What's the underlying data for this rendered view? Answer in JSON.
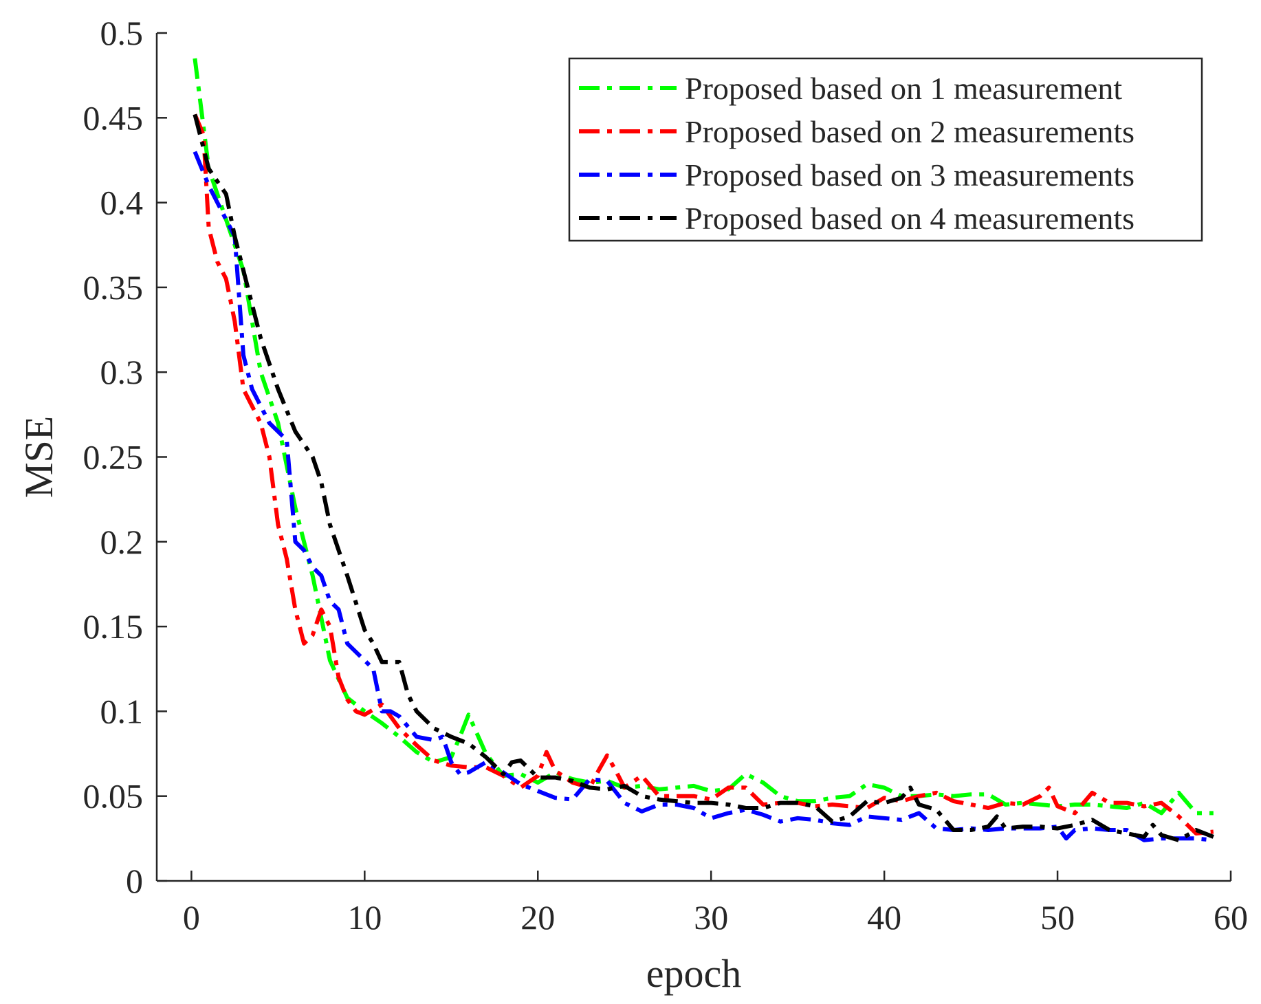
{
  "chart_data": {
    "type": "line",
    "title": "",
    "xlabel": "epoch",
    "ylabel": "MSE",
    "xlim": [
      -2,
      60
    ],
    "ylim": [
      0,
      0.5
    ],
    "xticks": [
      0,
      10,
      20,
      30,
      40,
      50,
      60
    ],
    "yticks": [
      0,
      0.05,
      0.1,
      0.15,
      0.2,
      0.25,
      0.3,
      0.35,
      0.4,
      0.45,
      0.5
    ],
    "xtick_labels": [
      "0",
      "10",
      "20",
      "30",
      "40",
      "50",
      "60"
    ],
    "ytick_labels": [
      "0",
      "0.05",
      "0.1",
      "0.15",
      "0.2",
      "0.25",
      "0.3",
      "0.35",
      "0.4",
      "0.45",
      "0.5"
    ],
    "grid": false,
    "legend_position": "top-right",
    "series": [
      {
        "name": "Proposed based on 1 measurement",
        "color": "#00ff00",
        "x": [
          0.2,
          1,
          2,
          3,
          4,
          5,
          6,
          7,
          8,
          9,
          10,
          11,
          12,
          13,
          14,
          15,
          15.5,
          16,
          17,
          18,
          19,
          20,
          21,
          22,
          23,
          24,
          25,
          26,
          27,
          28,
          29,
          30,
          31,
          32,
          33,
          34,
          35,
          36,
          37,
          38,
          39,
          40,
          41,
          42,
          43,
          44,
          45,
          46,
          47,
          48,
          49,
          50,
          51,
          52,
          53,
          54,
          55,
          56,
          57,
          58,
          59
        ],
        "y": [
          0.485,
          0.42,
          0.39,
          0.36,
          0.3,
          0.27,
          0.22,
          0.18,
          0.13,
          0.108,
          0.1,
          0.093,
          0.085,
          0.076,
          0.07,
          0.073,
          0.085,
          0.098,
          0.075,
          0.062,
          0.063,
          0.058,
          0.064,
          0.06,
          0.058,
          0.059,
          0.055,
          0.056,
          0.054,
          0.055,
          0.056,
          0.053,
          0.054,
          0.063,
          0.058,
          0.05,
          0.047,
          0.047,
          0.049,
          0.05,
          0.057,
          0.055,
          0.05,
          0.05,
          0.051,
          0.05,
          0.051,
          0.051,
          0.045,
          0.046,
          0.045,
          0.044,
          0.045,
          0.045,
          0.044,
          0.043,
          0.046,
          0.04,
          0.052,
          0.04,
          0.04
        ]
      },
      {
        "name": "Proposed based on 2 measurements",
        "color": "#ff0000",
        "x": [
          0.2,
          0.7,
          1,
          1.5,
          2,
          2.5,
          3,
          3.5,
          4,
          4.5,
          5,
          5.5,
          6,
          6.5,
          7,
          7.5,
          8,
          8.5,
          9,
          9.5,
          10,
          11,
          12,
          13,
          14,
          15,
          16,
          17,
          18,
          19,
          20,
          20.5,
          21,
          22,
          23,
          23.5,
          24,
          24.5,
          25,
          26,
          27,
          28,
          29,
          30,
          31,
          32,
          33,
          34,
          35,
          36,
          37,
          38,
          39,
          40,
          41,
          42,
          43,
          44,
          45,
          46,
          47,
          48,
          49,
          49.5,
          50,
          51,
          52,
          53,
          54,
          55,
          56,
          57,
          58,
          59
        ],
        "y": [
          0.452,
          0.44,
          0.385,
          0.365,
          0.355,
          0.33,
          0.29,
          0.28,
          0.27,
          0.25,
          0.21,
          0.19,
          0.16,
          0.14,
          0.145,
          0.16,
          0.15,
          0.12,
          0.107,
          0.1,
          0.098,
          0.104,
          0.09,
          0.08,
          0.071,
          0.068,
          0.067,
          0.067,
          0.062,
          0.055,
          0.062,
          0.076,
          0.065,
          0.058,
          0.055,
          0.065,
          0.074,
          0.065,
          0.055,
          0.062,
          0.05,
          0.05,
          0.05,
          0.048,
          0.055,
          0.055,
          0.045,
          0.046,
          0.046,
          0.044,
          0.045,
          0.044,
          0.043,
          0.049,
          0.047,
          0.05,
          0.052,
          0.047,
          0.045,
          0.043,
          0.046,
          0.045,
          0.05,
          0.055,
          0.044,
          0.04,
          0.052,
          0.046,
          0.046,
          0.044,
          0.046,
          0.038,
          0.028,
          0.029
        ]
      },
      {
        "name": "Proposed based on 3 measurements",
        "color": "#0000ff",
        "x": [
          0.2,
          1,
          2,
          2.5,
          3,
          3.5,
          4,
          4.5,
          5,
          5.5,
          6,
          6.5,
          7,
          7.5,
          8,
          8.5,
          9,
          9.5,
          10,
          10.5,
          11,
          11.5,
          12,
          13,
          14,
          14.5,
          15,
          15.5,
          16,
          17,
          18,
          19,
          20,
          21,
          22,
          23,
          24,
          25,
          26,
          27,
          28,
          29,
          30,
          31,
          32,
          33,
          34,
          35,
          36,
          37,
          38,
          39,
          40,
          41,
          42,
          43,
          44,
          45,
          46,
          47,
          48,
          49,
          50,
          50.5,
          51,
          52,
          53,
          54,
          55,
          56,
          57,
          58,
          59
        ],
        "y": [
          0.43,
          0.41,
          0.39,
          0.38,
          0.31,
          0.29,
          0.28,
          0.27,
          0.265,
          0.26,
          0.2,
          0.195,
          0.185,
          0.18,
          0.165,
          0.16,
          0.14,
          0.135,
          0.13,
          0.125,
          0.1,
          0.1,
          0.097,
          0.085,
          0.083,
          0.085,
          0.07,
          0.063,
          0.064,
          0.07,
          0.064,
          0.057,
          0.053,
          0.049,
          0.048,
          0.06,
          0.059,
          0.046,
          0.041,
          0.045,
          0.045,
          0.043,
          0.037,
          0.04,
          0.042,
          0.039,
          0.035,
          0.037,
          0.036,
          0.034,
          0.033,
          0.038,
          0.037,
          0.036,
          0.04,
          0.031,
          0.03,
          0.031,
          0.03,
          0.031,
          0.031,
          0.031,
          0.032,
          0.025,
          0.03,
          0.031,
          0.03,
          0.03,
          0.024,
          0.025,
          0.025,
          0.025,
          0.024
        ]
      },
      {
        "name": "Proposed based on 4 measurements",
        "color": "#000000",
        "x": [
          0.2,
          1,
          2,
          2.5,
          3,
          4,
          5,
          6,
          7,
          7.5,
          8,
          9,
          10,
          10.5,
          11,
          12,
          12.5,
          13,
          14,
          15,
          16,
          17,
          18,
          18.5,
          19,
          20,
          21,
          22,
          23,
          24,
          25,
          26,
          27,
          28,
          29,
          30,
          31,
          32,
          33,
          34,
          35,
          36,
          37,
          38,
          39,
          40,
          41,
          41.5,
          42,
          43,
          44,
          45,
          46,
          46.5,
          47,
          48,
          49,
          50,
          51,
          52,
          53,
          54,
          55,
          55.5,
          56,
          57,
          58,
          59
        ],
        "y": [
          0.452,
          0.42,
          0.405,
          0.38,
          0.36,
          0.32,
          0.29,
          0.265,
          0.25,
          0.235,
          0.21,
          0.18,
          0.148,
          0.14,
          0.129,
          0.129,
          0.11,
          0.1,
          0.09,
          0.085,
          0.081,
          0.073,
          0.063,
          0.07,
          0.071,
          0.061,
          0.061,
          0.059,
          0.055,
          0.054,
          0.056,
          0.05,
          0.048,
          0.047,
          0.046,
          0.046,
          0.045,
          0.043,
          0.043,
          0.046,
          0.046,
          0.044,
          0.035,
          0.038,
          0.047,
          0.046,
          0.049,
          0.055,
          0.045,
          0.042,
          0.03,
          0.03,
          0.032,
          0.038,
          0.031,
          0.032,
          0.032,
          0.031,
          0.033,
          0.036,
          0.03,
          0.028,
          0.026,
          0.033,
          0.027,
          0.024,
          0.03,
          0.026
        ]
      }
    ]
  }
}
